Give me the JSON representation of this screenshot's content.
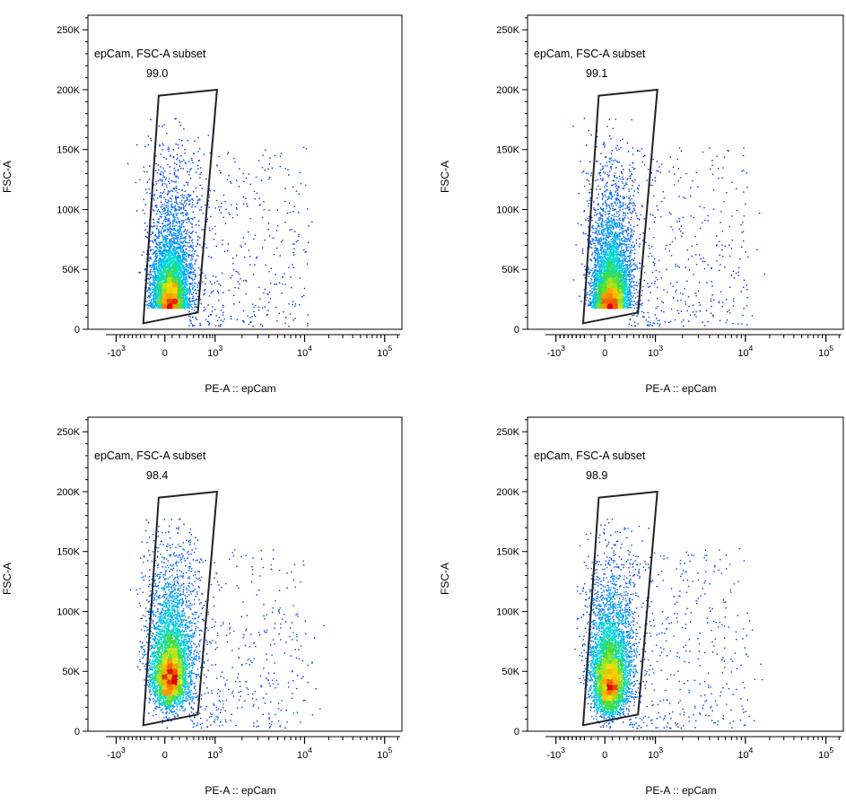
{
  "chart_data": [
    {
      "type": "scatter",
      "title": "",
      "xlabel": "PE-A :: epCam",
      "ylabel": "FSC-A",
      "x_scale": "biexponential",
      "xlim": [
        -3000,
        250000
      ],
      "ylim": [
        0,
        262144
      ],
      "y_ticks": [
        {
          "v": 0,
          "label": "0"
        },
        {
          "v": 50000,
          "label": "50K"
        },
        {
          "v": 100000,
          "label": "100K"
        },
        {
          "v": 150000,
          "label": "150K"
        },
        {
          "v": 200000,
          "label": "200K"
        },
        {
          "v": 250000,
          "label": "250K"
        }
      ],
      "x_ticks": [
        {
          "v": -1000,
          "label": "-10",
          "exp": "3"
        },
        {
          "v": 0,
          "label": "0",
          "exp": ""
        },
        {
          "v": 1000,
          "label": "10",
          "exp": "3"
        },
        {
          "v": 10000,
          "label": "10",
          "exp": "4"
        },
        {
          "v": 100000,
          "label": "10",
          "exp": "5"
        }
      ],
      "gate": {
        "name": "epCam, FSC-A subset",
        "percent": "99.0",
        "vertices": [
          [
            -330,
            5000
          ],
          [
            -90,
            195000
          ],
          [
            1050,
            200000
          ],
          [
            480,
            14000
          ]
        ]
      },
      "population": {
        "peak_x": 0,
        "peak_y": 18000,
        "y_mode": "low",
        "spread_y": 165000
      }
    },
    {
      "type": "scatter",
      "title": "",
      "xlabel": "PE-A :: epCam",
      "ylabel": "FSC-A",
      "x_scale": "biexponential",
      "xlim": [
        -3000,
        250000
      ],
      "ylim": [
        0,
        262144
      ],
      "y_ticks": [
        {
          "v": 0,
          "label": "0"
        },
        {
          "v": 50000,
          "label": "50K"
        },
        {
          "v": 100000,
          "label": "100K"
        },
        {
          "v": 150000,
          "label": "150K"
        },
        {
          "v": 200000,
          "label": "200K"
        },
        {
          "v": 250000,
          "label": "250K"
        }
      ],
      "x_ticks": [
        {
          "v": -1000,
          "label": "-10",
          "exp": "3"
        },
        {
          "v": 0,
          "label": "0",
          "exp": ""
        },
        {
          "v": 1000,
          "label": "10",
          "exp": "3"
        },
        {
          "v": 10000,
          "label": "10",
          "exp": "4"
        },
        {
          "v": 100000,
          "label": "10",
          "exp": "5"
        }
      ],
      "gate": {
        "name": "epCam, FSC-A subset",
        "percent": "99.1",
        "vertices": [
          [
            -330,
            5000
          ],
          [
            -90,
            195000
          ],
          [
            1050,
            200000
          ],
          [
            480,
            14000
          ]
        ]
      },
      "population": {
        "peak_x": 0,
        "peak_y": 18000,
        "y_mode": "low",
        "spread_y": 165000
      }
    },
    {
      "type": "scatter",
      "title": "",
      "xlabel": "PE-A :: epCam",
      "ylabel": "FSC-A",
      "x_scale": "biexponential",
      "xlim": [
        -3000,
        250000
      ],
      "ylim": [
        0,
        262144
      ],
      "y_ticks": [
        {
          "v": 0,
          "label": "0"
        },
        {
          "v": 50000,
          "label": "50K"
        },
        {
          "v": 100000,
          "label": "100K"
        },
        {
          "v": 150000,
          "label": "150K"
        },
        {
          "v": 200000,
          "label": "200K"
        },
        {
          "v": 250000,
          "label": "250K"
        }
      ],
      "x_ticks": [
        {
          "v": -1000,
          "label": "-10",
          "exp": "3"
        },
        {
          "v": 0,
          "label": "0",
          "exp": ""
        },
        {
          "v": 1000,
          "label": "10",
          "exp": "3"
        },
        {
          "v": 10000,
          "label": "10",
          "exp": "4"
        },
        {
          "v": 100000,
          "label": "10",
          "exp": "5"
        }
      ],
      "gate": {
        "name": "epCam, FSC-A subset",
        "percent": "98.4",
        "vertices": [
          [
            -330,
            5000
          ],
          [
            -90,
            195000
          ],
          [
            1050,
            200000
          ],
          [
            480,
            14000
          ]
        ]
      },
      "population": {
        "peak_x": -10,
        "peak_y": 30000,
        "y_mode": "mid",
        "spread_y": 170000
      }
    },
    {
      "type": "scatter",
      "title": "",
      "xlabel": "PE-A :: epCam",
      "ylabel": "FSC-A",
      "x_scale": "biexponential",
      "xlim": [
        -3000,
        250000
      ],
      "ylim": [
        0,
        262144
      ],
      "y_ticks": [
        {
          "v": 0,
          "label": "0"
        },
        {
          "v": 50000,
          "label": "50K"
        },
        {
          "v": 100000,
          "label": "100K"
        },
        {
          "v": 150000,
          "label": "150K"
        },
        {
          "v": 200000,
          "label": "200K"
        },
        {
          "v": 250000,
          "label": "250K"
        }
      ],
      "x_ticks": [
        {
          "v": -1000,
          "label": "-10",
          "exp": "3"
        },
        {
          "v": 0,
          "label": "0",
          "exp": ""
        },
        {
          "v": 1000,
          "label": "10",
          "exp": "3"
        },
        {
          "v": 10000,
          "label": "10",
          "exp": "4"
        },
        {
          "v": 100000,
          "label": "10",
          "exp": "5"
        }
      ],
      "gate": {
        "name": "epCam, FSC-A subset",
        "percent": "98.9",
        "vertices": [
          [
            -330,
            5000
          ],
          [
            -90,
            195000
          ],
          [
            1050,
            200000
          ],
          [
            480,
            14000
          ]
        ]
      },
      "population": {
        "peak_x": -10,
        "peak_y": 25000,
        "y_mode": "mid",
        "spread_y": 170000
      }
    }
  ]
}
